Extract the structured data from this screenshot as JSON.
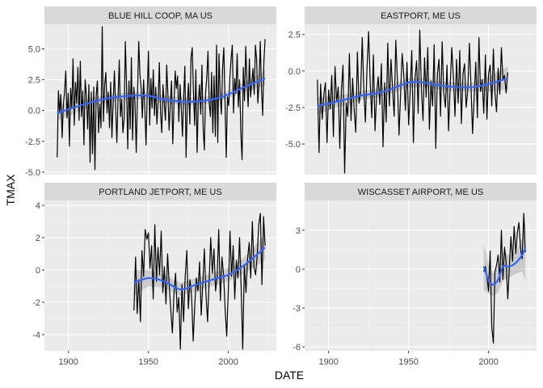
{
  "chart_data": {
    "type": "line",
    "xlabel": "DATE",
    "ylabel": "TMAX",
    "x_ticks": [
      "1900",
      "1950",
      "2000"
    ],
    "series_color": "#000000",
    "smooth_color": "#3366FF",
    "panel_background": "#EBEBEB",
    "strip_background": "#D9D9D9",
    "panels": [
      {
        "title": "BLUE HILL COOP, MA US",
        "ylim": [
          -5.2,
          7.0
        ],
        "yticks": [
          -5.0,
          -2.5,
          0.0,
          2.5,
          5.0
        ],
        "ytick_labels": [
          "-5.0",
          "-2.5",
          "0.0",
          "2.5",
          "5.0"
        ],
        "x_start": 1893,
        "x_end": 2023,
        "values": [
          -3.8,
          1.6,
          -0.2,
          1.3,
          -2.2,
          0.5,
          1.5,
          3.2,
          -0.6,
          1.4,
          -2.9,
          1.8,
          0.2,
          4.2,
          -1.2,
          2.3,
          0.6,
          3.5,
          -0.8,
          4.0,
          -0.5,
          1.6,
          -2.8,
          2.5,
          1.2,
          -1.5,
          2.1,
          -4.2,
          1.5,
          -3.5,
          1.9,
          -4.8,
          1.2,
          2.4,
          -1.8,
          0.5,
          -1.4,
          6.8,
          -0.9,
          2.1,
          3.1,
          -0.2,
          1.5,
          -1.4,
          2.3,
          -2.2,
          0.8,
          3.2,
          0.2,
          -2.6,
          1.0,
          4.1,
          -0.5,
          0.9,
          -1.8,
          -0.7,
          5.6,
          2.1,
          -3.1,
          2.4,
          -1.5,
          4.3,
          -2.4,
          1.9,
          0.6,
          -3.4,
          1.1,
          5.6,
          2.9,
          1.8,
          -0.6,
          2.5,
          0.3,
          -2.8,
          1.4,
          4.8,
          -1.2,
          2.6,
          0.2,
          3.3,
          -0.4,
          1.9,
          -1.1,
          0.7,
          3.9,
          -0.2,
          -1.8,
          2.1,
          0.5,
          -0.8,
          3.7,
          1.3,
          -1.6,
          0.6,
          2.4,
          -2.7,
          0.4,
          3.2,
          1.8,
          2.8,
          -0.9,
          2.1,
          0.3,
          -2.1,
          1.1,
          3.6,
          -3.8,
          0.5,
          2.2,
          -1.1,
          4.3,
          5.1,
          1.5,
          -1.2,
          3.3,
          -3.4,
          0.7,
          2.1,
          -0.3,
          3.7,
          -1.4,
          -3.2,
          1.4,
          2.7,
          4.8,
          0.6,
          -0.5,
          3.1,
          -1.8,
          2.8,
          -2.1,
          5.3,
          -2.6,
          4.6,
          1.3,
          -0.3,
          3.5,
          5.1,
          0.6,
          -3.8,
          1.1,
          0.4,
          2.7,
          4.2,
          5.3,
          -0.2,
          2.6,
          1.4,
          4.6,
          0.3,
          2.5,
          -1.9,
          -4.0,
          3.5,
          0.8,
          5.2,
          2.4,
          0.3,
          4.2,
          1.1,
          2.3,
          3.4,
          1.3,
          5.3,
          4.1,
          0.6,
          2.2,
          5.6,
          1.7,
          -0.4,
          4.0,
          5.8
        ],
        "smooth": [
          [
            1893,
            -0.2
          ],
          [
            1910,
            0.5
          ],
          [
            1925,
            1.0
          ],
          [
            1940,
            1.2
          ],
          [
            1950,
            1.2
          ],
          [
            1960,
            0.9
          ],
          [
            1975,
            0.7
          ],
          [
            1990,
            0.9
          ],
          [
            2000,
            1.3
          ],
          [
            2010,
            1.9
          ],
          [
            2023,
            2.6
          ]
        ],
        "band_halfwidth": [
          0.6,
          0.4,
          0.3,
          0.3,
          0.3,
          0.3,
          0.3,
          0.3,
          0.3,
          0.4,
          0.6
        ]
      },
      {
        "title": "EASTPORT, ME US",
        "ylim": [
          -7.1,
          3.2
        ],
        "yticks": [
          -5.0,
          -2.5,
          0.0,
          2.5
        ],
        "ytick_labels": [
          "-5.0",
          "-2.5",
          "0.0",
          "2.5"
        ],
        "x_start": 1893,
        "x_end": 2012,
        "values": [
          -0.6,
          -5.6,
          -0.9,
          -3.3,
          -1.6,
          -0.8,
          -4.9,
          -1.3,
          -2.6,
          -0.3,
          -4.5,
          0.3,
          -2.1,
          -1.1,
          -5.3,
          -1.3,
          0.4,
          -7.0,
          -2.2,
          -3.1,
          1.2,
          -3.4,
          -0.5,
          -2.8,
          -4.2,
          1.3,
          -2.2,
          -1.5,
          2.3,
          -1.2,
          -3.5,
          0.2,
          2.7,
          -0.9,
          -3.2,
          1.1,
          -4.1,
          -1.6,
          -0.4,
          -2.3,
          0.5,
          -5.2,
          -0.8,
          -3.5,
          1.9,
          -2.4,
          0.8,
          -1.3,
          -3.1,
          2.1,
          -0.6,
          -4.4,
          -1.5,
          1.2,
          -0.3,
          -2.7,
          0.6,
          -3.7,
          -1.4,
          1.4,
          -4.9,
          -0.5,
          0.7,
          -2.9,
          2.8,
          -1.2,
          -3.4,
          0.9,
          -1.8,
          1.6,
          -4.0,
          -0.7,
          -2.4,
          1.8,
          -5.3,
          -0.2,
          0.8,
          -3.1,
          2.0,
          -1.5,
          -2.5,
          0.4,
          -4.1,
          -1.1,
          1.6,
          -0.4,
          -3.1,
          0.8,
          -2.2,
          1.4,
          -3.6,
          -0.2,
          0.5,
          -2.5,
          -1.3,
          1.9,
          -0.9,
          -4.3,
          -1.8,
          0.6,
          -3.2,
          2.3,
          -1.4,
          -0.6,
          -2.9,
          1.1,
          -3.3,
          -0.2,
          0.4,
          -2.4,
          1.5,
          -1.5,
          -2.8,
          0.2,
          -1.6,
          1.6,
          -0.6,
          -0.3,
          -1.5,
          -0.1
        ],
        "smooth": [
          [
            1893,
            -2.4
          ],
          [
            1905,
            -2.1
          ],
          [
            1920,
            -1.7
          ],
          [
            1935,
            -1.4
          ],
          [
            1950,
            -0.8
          ],
          [
            1960,
            -0.8
          ],
          [
            1970,
            -1.0
          ],
          [
            1980,
            -1.1
          ],
          [
            1990,
            -1.1
          ],
          [
            2000,
            -0.9
          ],
          [
            2012,
            -0.5
          ]
        ],
        "band_halfwidth": [
          0.6,
          0.4,
          0.3,
          0.3,
          0.3,
          0.3,
          0.3,
          0.3,
          0.3,
          0.5,
          0.8
        ]
      },
      {
        "title": "PORTLAND JETPORT, ME US",
        "ylim": [
          -5.0,
          4.3
        ],
        "yticks": [
          -4,
          -2,
          0,
          2,
          4
        ],
        "ytick_labels": [
          "-4",
          "-2",
          "0",
          "2",
          "4"
        ],
        "x_start": 1941,
        "x_end": 2023,
        "values": [
          -2.5,
          0.8,
          -2.7,
          -0.6,
          -3.2,
          1.2,
          -0.4,
          2.5,
          1.9,
          2.3,
          0.1,
          1.5,
          -1.8,
          2.8,
          -0.7,
          1.4,
          -0.3,
          2.4,
          -1.4,
          0.2,
          -2.1,
          1.0,
          -0.9,
          -2.5,
          -3.9,
          -1.5,
          -0.2,
          -2.6,
          -1.7,
          -4.9,
          -0.9,
          -3.2,
          -0.4,
          1.2,
          -2.4,
          -0.6,
          -1.6,
          -4.4,
          -2.1,
          -0.5,
          -1.3,
          0.5,
          -2.8,
          -0.8,
          1.3,
          -1.5,
          -3.2,
          -0.6,
          2.0,
          -0.2,
          1.3,
          -1.3,
          -0.4,
          2.5,
          -1.9,
          0.8,
          -0.3,
          -2.5,
          -4.1,
          -1.2,
          2.4,
          -0.4,
          1.5,
          -1.8,
          0.6,
          -0.5,
          2.0,
          -1.2,
          -4.9,
          0.3,
          -1.4,
          0.7,
          1.7,
          -0.5,
          3.0,
          0.2,
          -0.3,
          0.8,
          2.8,
          3.5,
          -0.9,
          3.3,
          1.5
        ],
        "smooth": [
          [
            1941,
            -0.8
          ],
          [
            1950,
            -0.5
          ],
          [
            1960,
            -0.7
          ],
          [
            1970,
            -1.2
          ],
          [
            1980,
            -0.9
          ],
          [
            1990,
            -0.6
          ],
          [
            2000,
            -0.3
          ],
          [
            2010,
            0.3
          ],
          [
            2023,
            1.4
          ]
        ],
        "band_halfwidth": [
          0.8,
          0.5,
          0.4,
          0.4,
          0.4,
          0.4,
          0.4,
          0.5,
          0.8
        ]
      },
      {
        "title": "WISCASSET AIRPORT, ME US",
        "ylim": [
          -6.3,
          5.3
        ],
        "yticks": [
          -6,
          -3,
          0,
          3
        ],
        "ytick_labels": [
          "-6",
          "-3",
          "0",
          "3"
        ],
        "x_start": 1997,
        "x_end": 2023,
        "values": [
          -0.2,
          0.2,
          -0.6,
          -1.7,
          1.4,
          -4.5,
          -5.7,
          -0.2,
          0.3,
          1.1,
          -1.0,
          3.0,
          -0.8,
          1.7,
          0.5,
          -2.3,
          0.2,
          2.5,
          0.6,
          3.3,
          1.2,
          2.8,
          3.6,
          1.6,
          0.8,
          4.3,
          1.3
        ],
        "smooth": [
          [
            1997,
            0.2
          ],
          [
            2000,
            -0.8
          ],
          [
            2003,
            -1.2
          ],
          [
            2006,
            -0.8
          ],
          [
            2009,
            0.2
          ],
          [
            2012,
            0.2
          ],
          [
            2015,
            0.3
          ],
          [
            2018,
            0.6
          ],
          [
            2021,
            1.1
          ],
          [
            2023,
            1.6
          ]
        ],
        "band_halfwidth": [
          1.8,
          1.1,
          0.9,
          1.0,
          1.1,
          0.9,
          0.8,
          0.9,
          1.3,
          2.5
        ]
      }
    ]
  }
}
